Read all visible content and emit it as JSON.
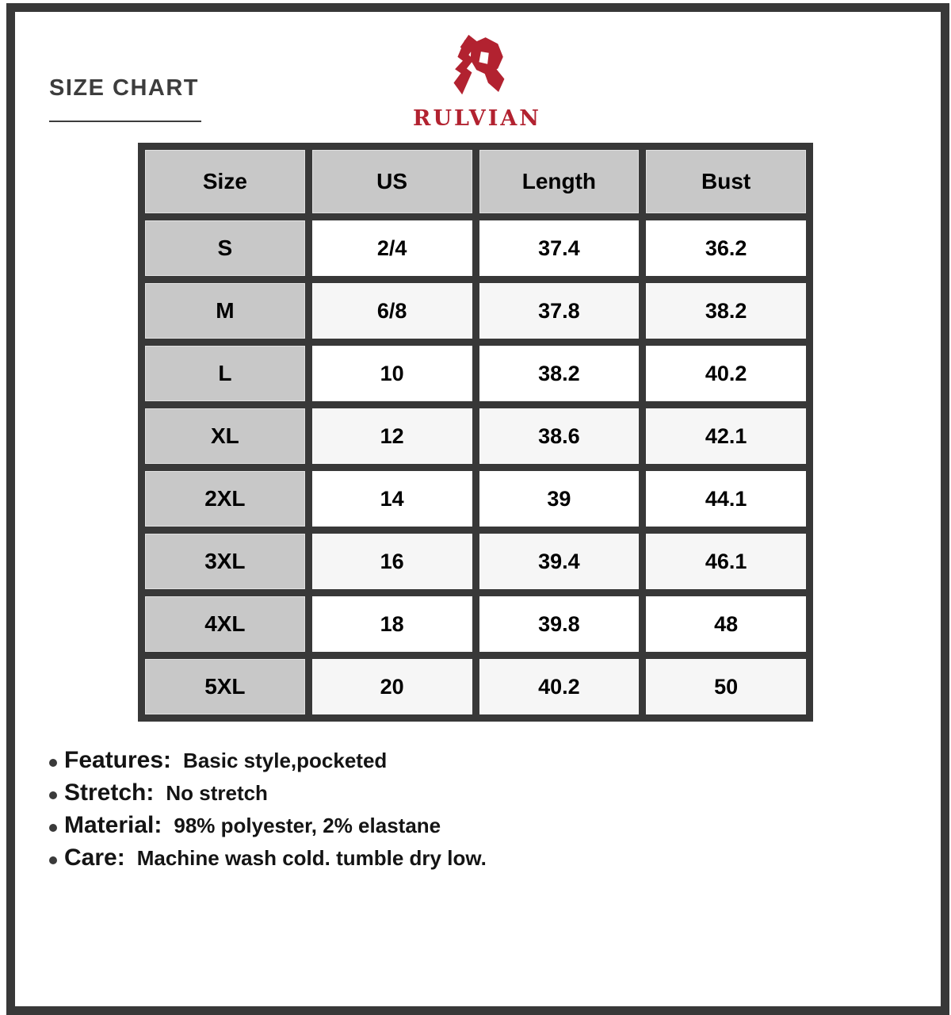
{
  "header": {
    "title": "SIZE CHART",
    "brand": "RULVIAN"
  },
  "icons": {
    "brand_mark": "stylized-angular-R",
    "bullet": "filled-circle"
  },
  "chart_data": {
    "type": "table",
    "title": "SIZE CHART",
    "columns": [
      "Size",
      "US",
      "Length",
      "Bust"
    ],
    "rows": [
      [
        "S",
        "2/4",
        "37.4",
        "36.2"
      ],
      [
        "M",
        "6/8",
        "37.8",
        "38.2"
      ],
      [
        "L",
        "10",
        "38.2",
        "40.2"
      ],
      [
        "XL",
        "12",
        "38.6",
        "42.1"
      ],
      [
        "2XL",
        "14",
        "39",
        "44.1"
      ],
      [
        "3XL",
        "16",
        "39.4",
        "46.1"
      ],
      [
        "4XL",
        "18",
        "39.8",
        "48"
      ],
      [
        "5XL",
        "20",
        "40.2",
        "50"
      ]
    ]
  },
  "details": [
    {
      "label": "Features:",
      "value": "Basic style,pocketed"
    },
    {
      "label": "Stretch:",
      "value": "No stretch"
    },
    {
      "label": "Material:",
      "value": "98% polyester, 2% elastane"
    },
    {
      "label": "Care:",
      "value": "Machine wash cold. tumble dry low."
    }
  ],
  "colors": {
    "accent_red": "#b22230",
    "frame_dark": "#383838",
    "cell_gray": "#c8c8c8",
    "cell_alt": "#f6f6f6"
  }
}
